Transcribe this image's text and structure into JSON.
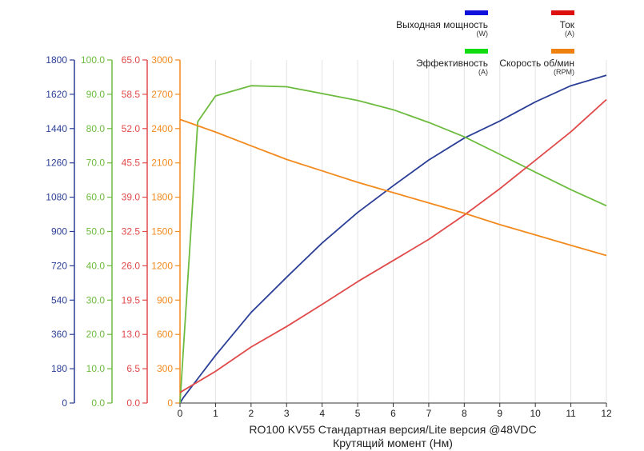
{
  "chart_data": {
    "type": "line",
    "title": "RO100 KV55 Стандартная версия/Lite версия  @48VDC",
    "xlabel": "Крутящий момент (Нм)",
    "xlim": [
      0,
      12
    ],
    "x_ticks": [
      "0",
      "1",
      "2",
      "3",
      "4",
      "5",
      "6",
      "7",
      "8",
      "9",
      "10",
      "11",
      "12"
    ],
    "grid": "vertical",
    "legend_position": "top-right",
    "axes": [
      {
        "id": "power",
        "color": "#2b3f97",
        "min": 0,
        "max": 1800,
        "ticks": [
          "0",
          "180",
          "360",
          "540",
          "720",
          "900",
          "1080",
          "1260",
          "1440",
          "1620",
          "1800"
        ]
      },
      {
        "id": "efficiency",
        "color": "#6dbb3f",
        "min": 0,
        "max": 100,
        "ticks": [
          "0.0",
          "10.0",
          "20.0",
          "30.0",
          "40.0",
          "50.0",
          "60.0",
          "70.0",
          "80.0",
          "90.0",
          "100.0"
        ]
      },
      {
        "id": "current",
        "color": "#e04a4a",
        "min": 0,
        "max": 65,
        "ticks": [
          "0.0",
          "6.5",
          "13.0",
          "19.5",
          "26.0",
          "32.5",
          "39.0",
          "45.5",
          "52.0",
          "58.5",
          "65.0"
        ]
      },
      {
        "id": "rpm",
        "color": "#f28a1e",
        "min": 0,
        "max": 3000,
        "ticks": [
          "0",
          "300",
          "600",
          "900",
          "1200",
          "1500",
          "1800",
          "2100",
          "2400",
          "2700",
          "3000"
        ]
      }
    ],
    "legend": [
      {
        "label": "Выходная мощность",
        "unit": "(W)",
        "swatch": "#1010dd"
      },
      {
        "label": "Ток",
        "unit": "(A)",
        "swatch": "#dd1010"
      },
      {
        "label": "Эффективность",
        "unit": "(A)",
        "swatch": "#10dd10"
      },
      {
        "label": "Скорость об/мин",
        "unit": "(RPM)",
        "swatch": "#ee8010"
      }
    ],
    "series": [
      {
        "axis": "power",
        "color": "#2b3f97",
        "x": [
          0,
          0.1,
          1,
          2,
          3,
          4,
          5,
          6,
          7,
          8,
          9,
          10,
          11,
          12
        ],
        "y": [
          0,
          30,
          250,
          475,
          660,
          840,
          1000,
          1140,
          1275,
          1390,
          1480,
          1580,
          1665,
          1720
        ]
      },
      {
        "axis": "efficiency",
        "color": "#6dbb3f",
        "x": [
          0,
          0.5,
          1,
          2,
          3,
          4,
          5,
          6,
          7,
          8,
          9,
          10,
          11,
          12
        ],
        "y": [
          0,
          82,
          89.5,
          92.5,
          92.2,
          90.2,
          88.2,
          85.5,
          81.8,
          77.6,
          72.5,
          67.3,
          62.2,
          57.5
        ]
      },
      {
        "axis": "current",
        "color": "#e04a4a",
        "x": [
          0,
          1,
          2,
          3,
          4,
          5,
          6,
          7,
          8,
          9,
          10,
          11,
          12
        ],
        "y": [
          2,
          6,
          10.6,
          14.5,
          18.7,
          23,
          27,
          31,
          35.6,
          40.6,
          46,
          51.4,
          57.5
        ]
      },
      {
        "axis": "rpm",
        "color": "#f28a1e",
        "x": [
          0,
          1,
          2,
          3,
          4,
          5,
          6,
          7,
          8,
          9,
          10,
          11,
          12
        ],
        "y": [
          2480,
          2370,
          2250,
          2130,
          2030,
          1930,
          1840,
          1750,
          1660,
          1560,
          1470,
          1380,
          1290
        ]
      }
    ]
  }
}
